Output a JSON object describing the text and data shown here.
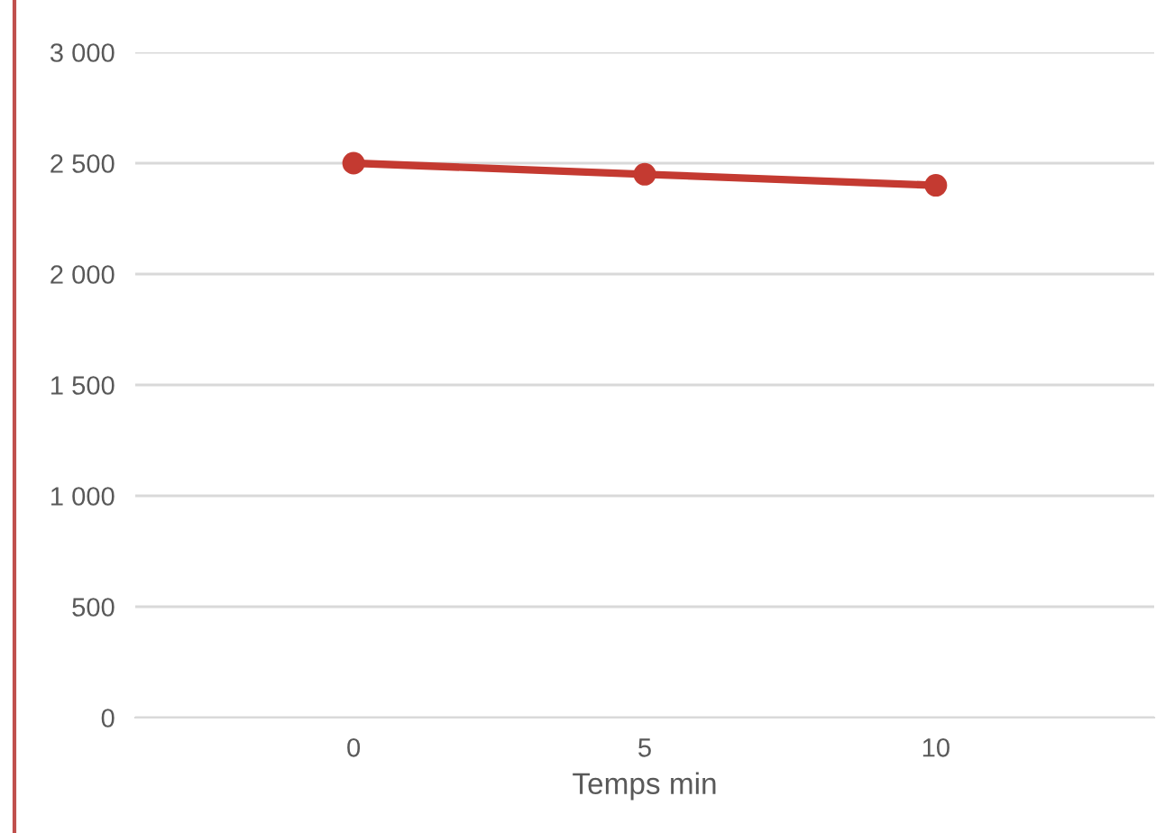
{
  "chart_data": {
    "type": "line",
    "xlabel": "Temps min",
    "categories": [
      "0",
      "5",
      "10"
    ],
    "series": [
      {
        "color": "#c43a31",
        "values": [
          2500,
          2450,
          2400
        ]
      }
    ],
    "ylim": [
      0,
      3000
    ],
    "yticks": [
      0,
      500,
      {
        "value": 1000,
        "label": "1 000"
      },
      {
        "value": 1500,
        "label": "1 500"
      },
      {
        "value": 2000,
        "label": "2 000"
      },
      {
        "value": 2500,
        "label": "2 500"
      },
      {
        "value": 3000,
        "label": "3 000"
      }
    ],
    "grid": "y",
    "marker": "circle",
    "line_style": "solid"
  }
}
